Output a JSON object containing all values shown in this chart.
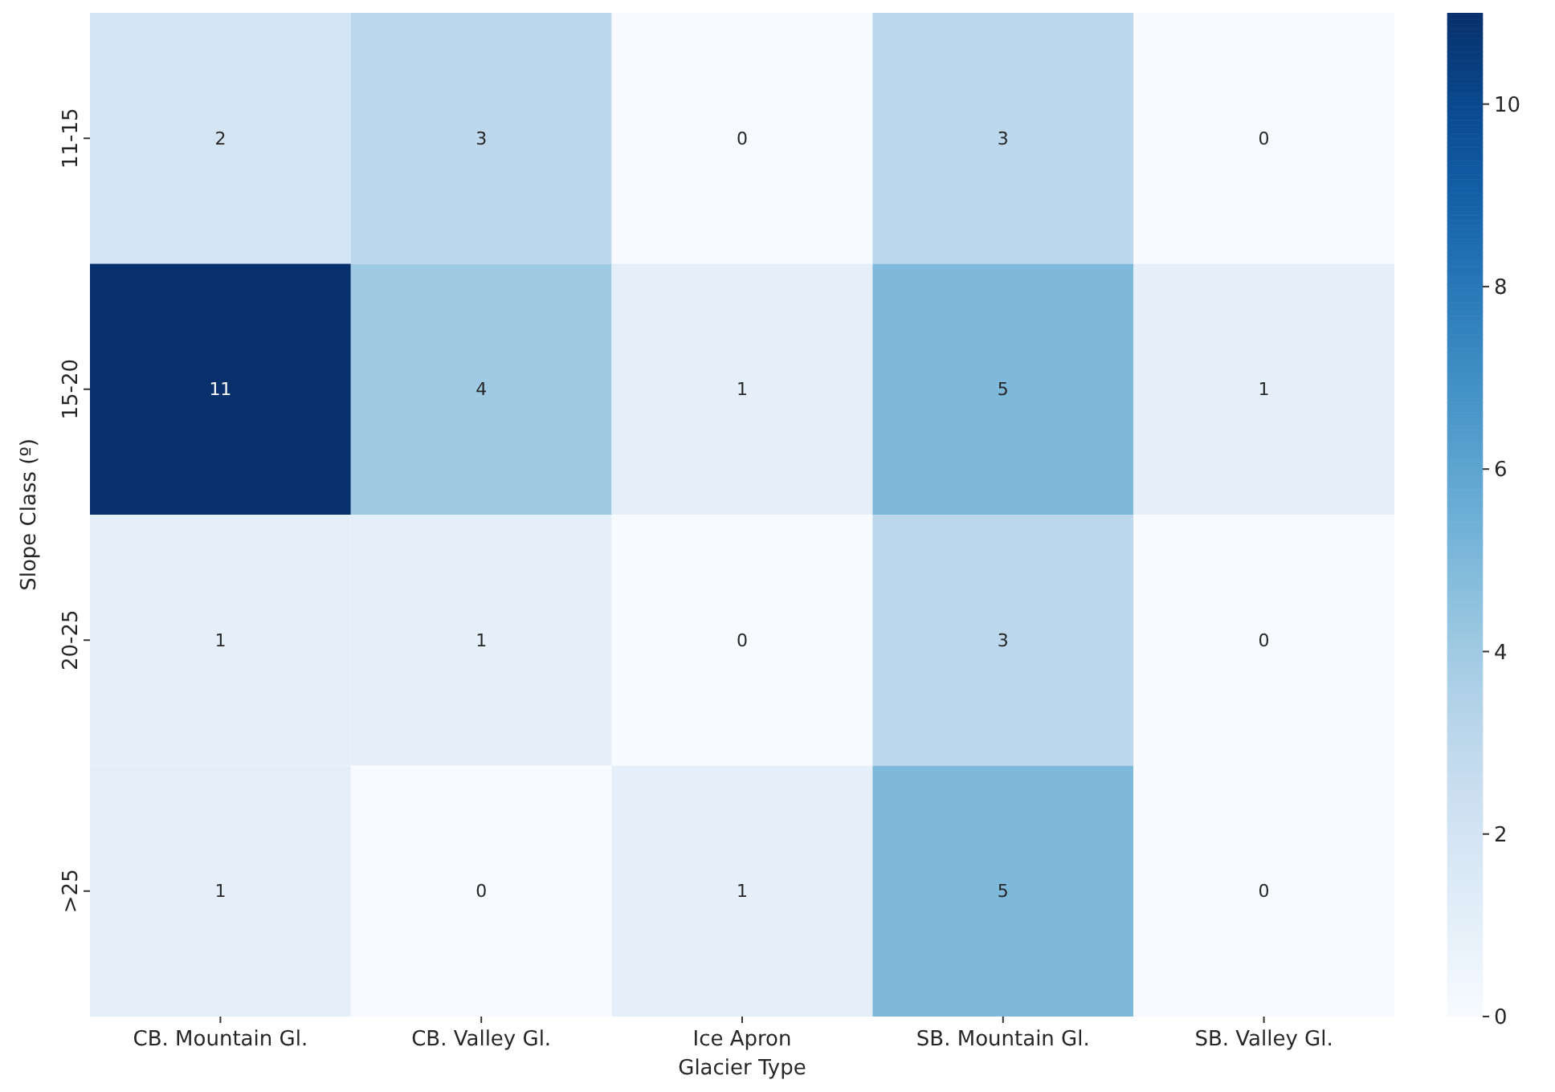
{
  "chart_data": {
    "type": "heatmap",
    "xlabel": "Glacier Type",
    "ylabel": "Slope Class (º)",
    "categories": [
      "CB. Mountain Gl.",
      "CB. Valley Gl.",
      "Ice Apron",
      "SB. Mountain Gl.",
      "SB. Valley Gl."
    ],
    "y_categories": [
      "11-15",
      "15-20",
      "20-25",
      ">25"
    ],
    "cells": [
      [
        2,
        3,
        0,
        3,
        0
      ],
      [
        11,
        4,
        1,
        5,
        1
      ],
      [
        1,
        1,
        0,
        3,
        0
      ],
      [
        1,
        0,
        1,
        5,
        0
      ]
    ],
    "data_labels": true,
    "clim": [
      0,
      11
    ],
    "cticks": [
      0,
      2,
      4,
      6,
      8,
      10
    ]
  }
}
